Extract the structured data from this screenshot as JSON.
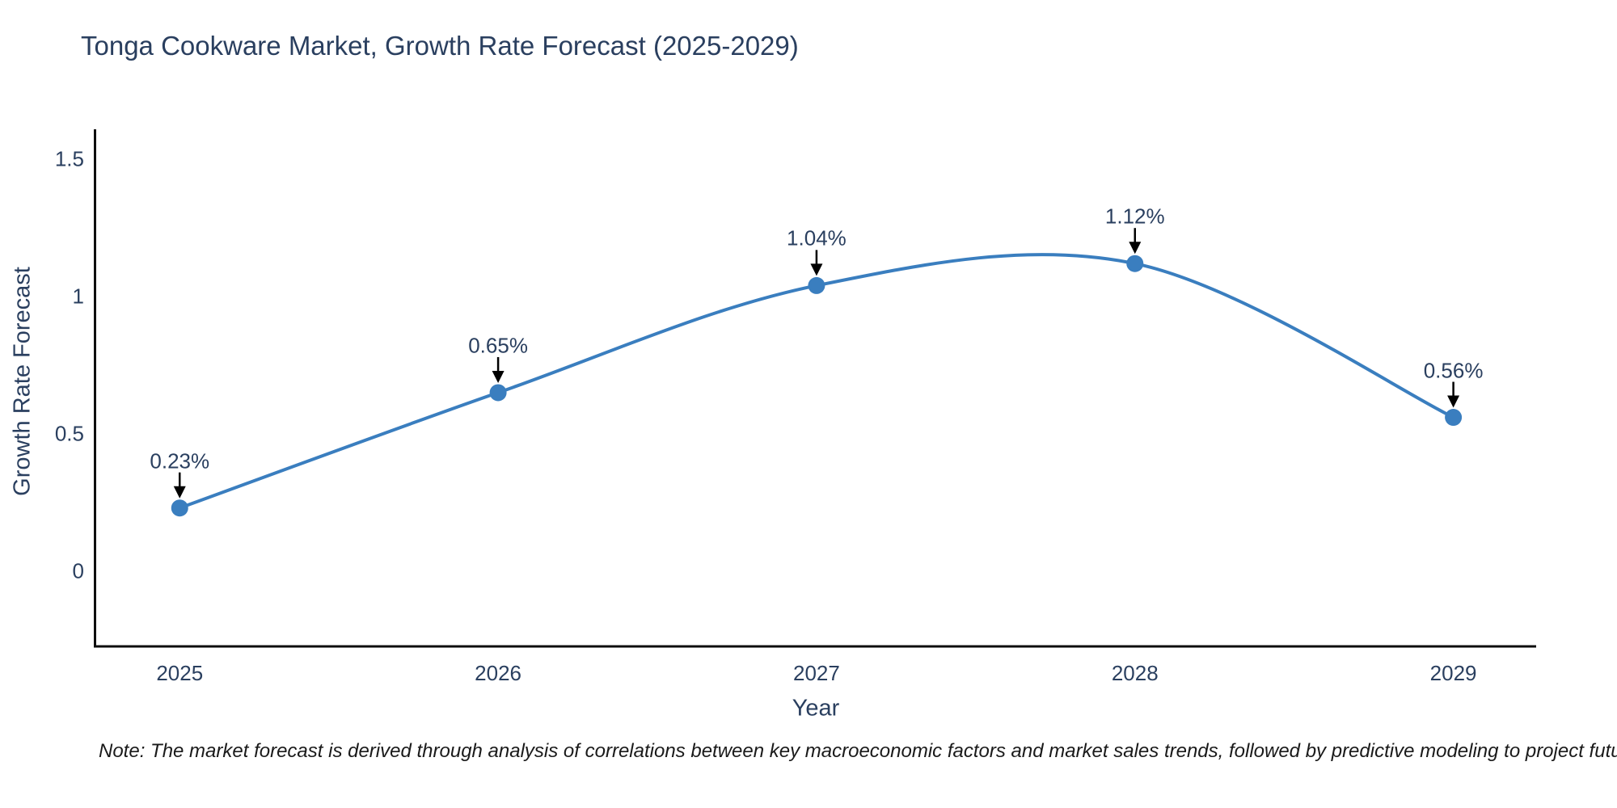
{
  "note": "Note: The market forecast is derived through analysis of correlations between key macroeconomic factors and market sales trends, followed by predictive modeling to project future sales",
  "chart_data": {
    "type": "line",
    "title": "Tonga Cookware Market, Growth Rate Forecast (2025-2029)",
    "xlabel": "Year",
    "ylabel": "Growth Rate Forecast",
    "x": [
      2025,
      2026,
      2027,
      2028,
      2029
    ],
    "y": [
      0.23,
      0.65,
      1.04,
      1.12,
      0.56
    ],
    "point_labels": [
      "0.23%",
      "0.65%",
      "1.04%",
      "1.12%",
      "0.56%"
    ],
    "x_tick_labels": [
      "2025",
      "2026",
      "2027",
      "2028",
      "2029"
    ],
    "y_ticks": [
      0,
      0.5,
      1,
      1.5
    ],
    "y_tick_labels": [
      "0",
      "0.5",
      "1",
      "1.5"
    ],
    "x_range": [
      2024.734,
      2029.26
    ],
    "y_range": [
      -0.274,
      1.609
    ],
    "line_shape": "spline",
    "grid": false,
    "legend": "none",
    "colors": {
      "line": "#3a7ebf",
      "marker": "#3a7ebf",
      "axis": "#0d0d0d",
      "arrow": "#000000",
      "text": "#2a3f5f"
    }
  }
}
